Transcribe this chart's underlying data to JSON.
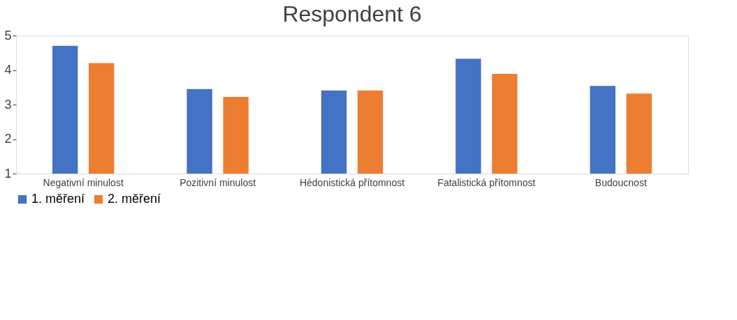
{
  "chart_data": {
    "type": "bar",
    "title": "Respondent 6",
    "categories": [
      "Negativní minulost",
      "Pozitivní minulost",
      "Hédonistická přítomnost",
      "Fatalistická přítomnost",
      "Budoucnost"
    ],
    "series": [
      {
        "name": "1. měření",
        "color": "#4472c4",
        "values": [
          4.7,
          3.45,
          3.41,
          4.33,
          3.54
        ]
      },
      {
        "name": "2. měření",
        "color": "#ed7d31",
        "values": [
          4.2,
          3.22,
          3.41,
          3.89,
          3.32
        ]
      }
    ],
    "ylim": [
      1,
      5
    ],
    "yticks": [
      1,
      2,
      3,
      4,
      5
    ],
    "grid": false,
    "legend": "bottom"
  }
}
